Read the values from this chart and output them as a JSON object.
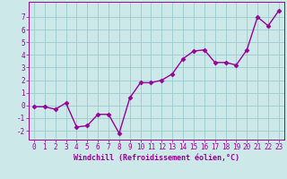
{
  "x": [
    0,
    1,
    2,
    3,
    4,
    5,
    6,
    7,
    8,
    9,
    10,
    11,
    12,
    13,
    14,
    15,
    16,
    17,
    18,
    19,
    20,
    21,
    22,
    23
  ],
  "y": [
    -0.1,
    -0.1,
    -0.3,
    0.2,
    -1.7,
    -1.6,
    -0.7,
    -0.7,
    -2.2,
    0.6,
    1.8,
    1.8,
    2.0,
    2.5,
    3.7,
    4.3,
    4.4,
    3.4,
    3.4,
    3.2,
    4.4,
    7.0,
    6.3,
    7.5
  ],
  "line_color": "#990099",
  "marker": "D",
  "marker_size": 2.5,
  "bg_color": "#cce8e8",
  "grid_color": "#99cccc",
  "xlabel": "Windchill (Refroidissement éolien,°C)",
  "ylabel": "",
  "xlim": [
    -0.5,
    23.5
  ],
  "ylim": [
    -2.7,
    8.2
  ],
  "yticks": [
    -2,
    -1,
    0,
    1,
    2,
    3,
    4,
    5,
    6,
    7
  ],
  "xticks": [
    0,
    1,
    2,
    3,
    4,
    5,
    6,
    7,
    8,
    9,
    10,
    11,
    12,
    13,
    14,
    15,
    16,
    17,
    18,
    19,
    20,
    21,
    22,
    23
  ],
  "tick_color": "#990099",
  "label_color": "#990099",
  "font_size": 5.5,
  "xlabel_fontsize": 6.0,
  "line_width": 1.0
}
